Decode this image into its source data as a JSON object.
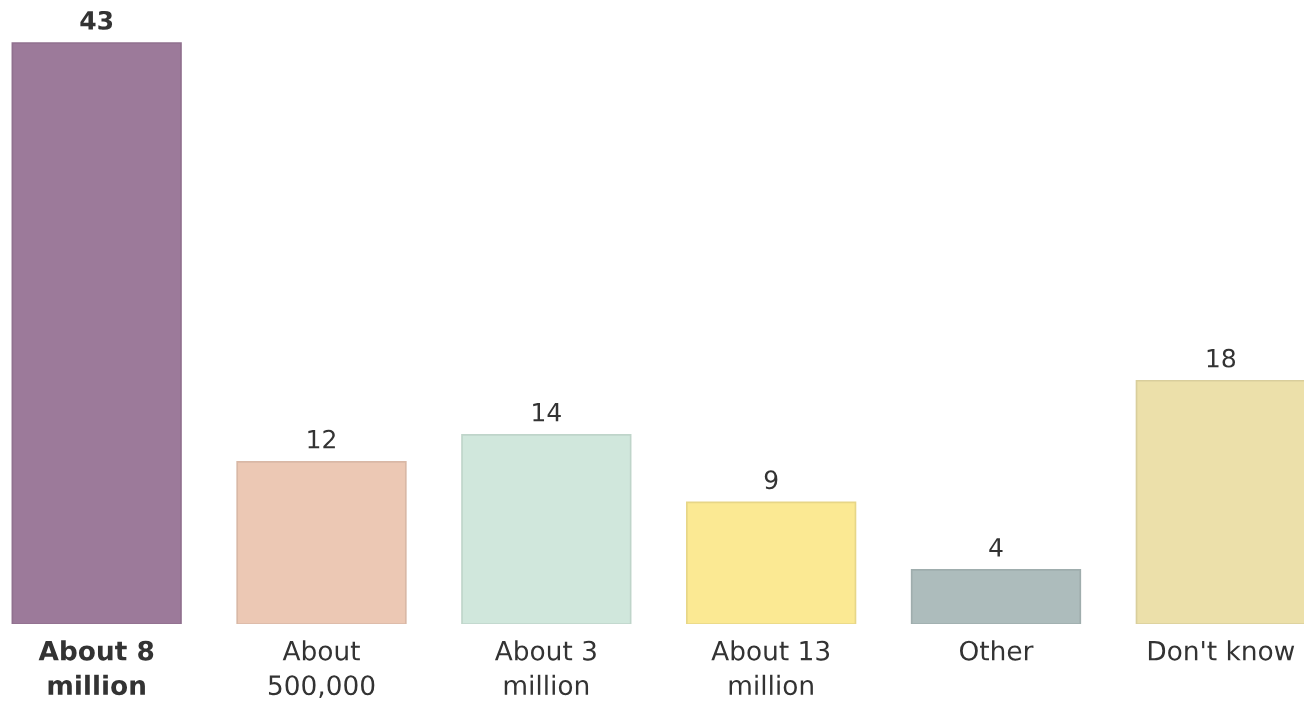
{
  "chart_data": {
    "type": "bar",
    "categories": [
      "About 8\nmillion",
      "About\n500,000",
      "About 3\nmillion",
      "About 13\nmillion",
      "Other",
      "Don't know"
    ],
    "values": [
      43,
      12,
      14,
      9,
      4,
      18
    ],
    "colors": [
      "#9c7a9a",
      "#ecc8b4",
      "#d0e7dc",
      "#fbe993",
      "#adbcbc",
      "#ece0aa"
    ],
    "data_labels": true
  }
}
